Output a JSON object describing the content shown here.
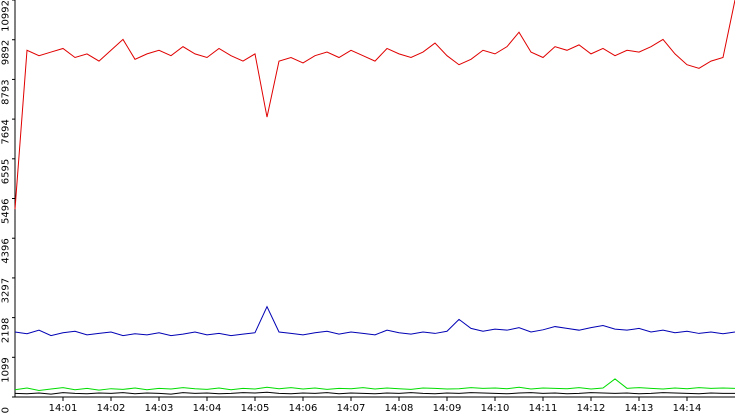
{
  "chart_data": {
    "type": "line",
    "x": [
      840,
      840.25,
      840.5,
      840.75,
      841,
      841.25,
      841.5,
      841.75,
      842,
      842.25,
      842.5,
      842.75,
      843,
      843.25,
      843.5,
      843.75,
      844,
      844.25,
      844.5,
      844.75,
      845,
      845.25,
      845.5,
      845.75,
      846,
      846.25,
      846.5,
      846.75,
      847,
      847.25,
      847.5,
      847.75,
      848,
      848.25,
      848.5,
      848.75,
      849,
      849.25,
      849.5,
      849.75,
      850,
      850.25,
      850.5,
      850.75,
      851,
      851.25,
      851.5,
      851.75,
      852,
      852.25,
      852.5,
      852.75,
      853,
      853.25,
      853.5,
      853.75,
      854,
      854.25,
      854.5,
      854.75,
      855
    ],
    "series": [
      {
        "color": "#e00000",
        "values": [
          5200,
          9600,
          9450,
          9550,
          9650,
          9400,
          9500,
          9300,
          9600,
          9900,
          9350,
          9500,
          9600,
          9450,
          9700,
          9500,
          9400,
          9650,
          9450,
          9300,
          9500,
          7750,
          9300,
          9400,
          9250,
          9450,
          9550,
          9400,
          9600,
          9450,
          9300,
          9650,
          9500,
          9400,
          9550,
          9800,
          9450,
          9200,
          9350,
          9600,
          9500,
          9700,
          10100,
          9550,
          9400,
          9700,
          9600,
          9750,
          9500,
          9650,
          9450,
          9600,
          9550,
          9700,
          9900,
          9500,
          9200,
          9100,
          9300,
          9400,
          10992
        ]
      },
      {
        "color": "#0000b4",
        "values": [
          1800,
          1750,
          1850,
          1700,
          1780,
          1820,
          1720,
          1760,
          1800,
          1700,
          1750,
          1720,
          1780,
          1700,
          1740,
          1800,
          1720,
          1760,
          1700,
          1740,
          1780,
          2500,
          1800,
          1760,
          1720,
          1780,
          1820,
          1740,
          1800,
          1760,
          1720,
          1850,
          1780,
          1740,
          1800,
          1760,
          1820,
          2150,
          1900,
          1820,
          1880,
          1850,
          1920,
          1800,
          1860,
          1950,
          1900,
          1850,
          1920,
          1980,
          1880,
          1850,
          1900,
          1800,
          1850,
          1780,
          1820,
          1760,
          1800,
          1750,
          1800
        ]
      },
      {
        "color": "#00dc00",
        "values": [
          200,
          250,
          180,
          220,
          260,
          200,
          240,
          190,
          230,
          210,
          250,
          200,
          240,
          220,
          260,
          230,
          210,
          250,
          200,
          240,
          220,
          270,
          230,
          260,
          220,
          250,
          210,
          240,
          230,
          260,
          220,
          250,
          230,
          210,
          250,
          240,
          220,
          230,
          260,
          240,
          250,
          230,
          270,
          220,
          250,
          240,
          230,
          260,
          220,
          250,
          500,
          240,
          260,
          240,
          220,
          250,
          230,
          260,
          240,
          250,
          240
        ]
      },
      {
        "color": "#000000",
        "values": [
          100,
          90,
          110,
          80,
          120,
          100,
          90,
          110,
          100,
          120,
          90,
          110,
          100,
          80,
          120,
          100,
          110,
          90,
          100,
          120,
          110,
          130,
          100,
          90,
          110,
          100,
          120,
          90,
          110,
          100,
          90,
          110,
          100,
          120,
          100,
          90,
          110,
          100,
          120,
          110,
          100,
          90,
          110,
          120,
          100,
          110,
          90,
          100,
          120,
          110,
          100,
          110,
          90,
          100,
          120,
          110,
          100,
          90,
          110,
          100,
          100
        ]
      }
    ],
    "xlim": [
      840,
      855
    ],
    "xticks": [
      {
        "value": 841,
        "label": "14:01"
      },
      {
        "value": 842,
        "label": "14:02"
      },
      {
        "value": 843,
        "label": "14:03"
      },
      {
        "value": 844,
        "label": "14:04"
      },
      {
        "value": 845,
        "label": "14:05"
      },
      {
        "value": 846,
        "label": "14:06"
      },
      {
        "value": 847,
        "label": "14:07"
      },
      {
        "value": 848,
        "label": "14:08"
      },
      {
        "value": 849,
        "label": "14:09"
      },
      {
        "value": 850,
        "label": "14:10"
      },
      {
        "value": 851,
        "label": "14:11"
      },
      {
        "value": 852,
        "label": "14:12"
      },
      {
        "value": 853,
        "label": "14:13"
      },
      {
        "value": 854,
        "label": "14:14"
      }
    ],
    "ylim": [
      0,
      10992
    ],
    "yticks": [
      0,
      1099,
      2198,
      3297,
      4396,
      5496,
      6595,
      7694,
      8793,
      9892,
      10992
    ]
  }
}
